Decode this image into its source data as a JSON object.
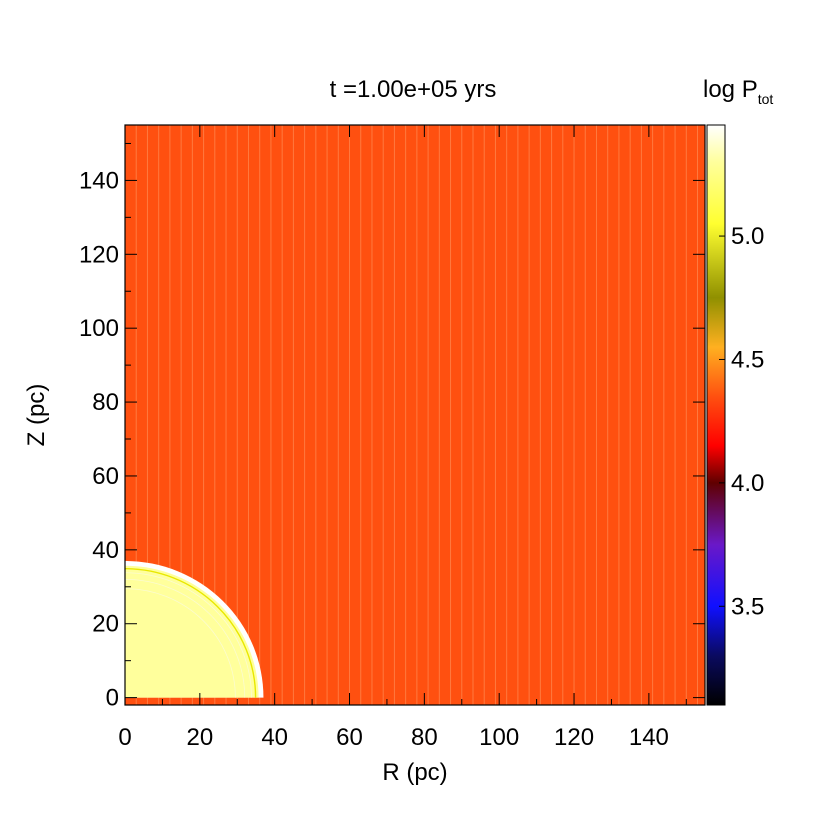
{
  "chart_data": {
    "type": "heatmap",
    "title": "t =1.00e+05 yrs",
    "xlabel": "R (pc)",
    "ylabel": "Z (pc)",
    "xlim": [
      0,
      155
    ],
    "ylim": [
      -2,
      155
    ],
    "xticks": [
      0,
      20,
      40,
      60,
      80,
      100,
      120,
      140
    ],
    "yticks": [
      0,
      20,
      40,
      60,
      80,
      100,
      120,
      140
    ],
    "grid": false,
    "field": {
      "background_value": 4.35,
      "background_color": "#ff5010",
      "bubble_value": 5.3,
      "bubble_color": "#ffff9c",
      "shell_color": "#ffffff",
      "bubble_radius": 37
    },
    "colorbar": {
      "label": "log P",
      "label_sub": "tot",
      "range": [
        3.1,
        5.45
      ],
      "ticks": [
        3.5,
        4.0,
        4.5,
        5.0
      ],
      "tick_labels": [
        "3.5",
        "4.0",
        "4.5",
        "5.0"
      ],
      "stops": [
        {
          "v": 3.1,
          "color": "#000000"
        },
        {
          "v": 3.3,
          "color": "#0a0a60"
        },
        {
          "v": 3.5,
          "color": "#1010ff"
        },
        {
          "v": 3.75,
          "color": "#6a18c8"
        },
        {
          "v": 4.0,
          "color": "#600000"
        },
        {
          "v": 4.15,
          "color": "#ff0000"
        },
        {
          "v": 4.35,
          "color": "#ff5010"
        },
        {
          "v": 4.55,
          "color": "#ffb020"
        },
        {
          "v": 4.75,
          "color": "#909000"
        },
        {
          "v": 5.05,
          "color": "#ffff30"
        },
        {
          "v": 5.3,
          "color": "#ffff9c"
        },
        {
          "v": 5.45,
          "color": "#ffffff"
        }
      ]
    }
  }
}
